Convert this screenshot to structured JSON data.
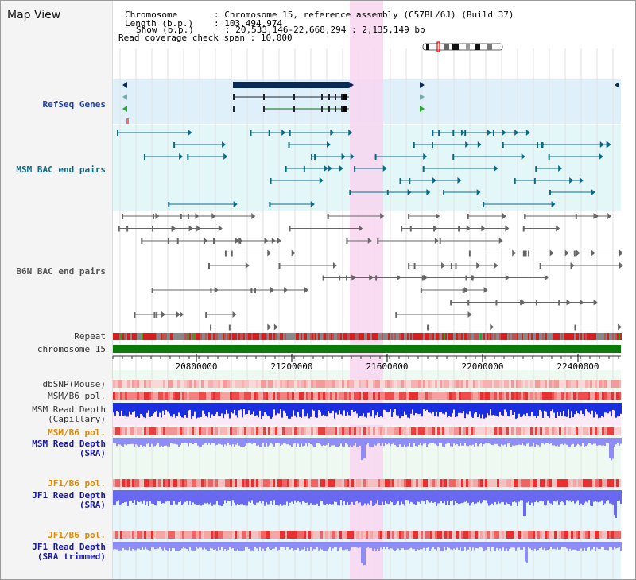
{
  "header": {
    "title": "Map View",
    "chromosome_key": "Chromosome",
    "chromosome_value": "Chromosome 15, reference assembly (C57BL/6J) (Build 37)",
    "length_key": "Length (b.p.)",
    "length_value": "103,494,974",
    "show_key": "Show (b.p.)",
    "show_value": "20,533,146-22,668,294 : 2,135,149 bp",
    "span_key": "Read coverage check span",
    "span_value": "10,000"
  },
  "tracks": {
    "refseq": "RefSeq Genes",
    "msm_bac": "MSM BAC end pairs",
    "b6n_bac": "B6N BAC end pairs",
    "repeat": "Repeat",
    "chromosome": "chromosome 15",
    "dbsnp": "dbSNP(Mouse)",
    "msm_b6_pol": "MSM/B6 pol.",
    "msm_depth_cap_1": "MSM Read Depth",
    "msm_depth_cap_2": "(Capillary)",
    "msm_b6_pol_2": "MSM/B6 pol.",
    "msm_depth_sra_1": "MSM Read Depth",
    "msm_depth_sra_2": "(SRA)",
    "jf1_b6_pol": "JF1/B6 pol.",
    "jf1_depth_sra_1": "JF1 Read Depth",
    "jf1_depth_sra_2": "(SRA)",
    "jf1_b6_pol_2": "JF1/B6 pol.",
    "jf1_depth_trim_1": "JF1 Read Depth",
    "jf1_depth_trim_2": "(SRA trimmed)"
  },
  "axis_ticks": [
    "20800000",
    "21200000",
    "21600000",
    "22000000",
    "22400000"
  ],
  "colors": {
    "highlight": "#f8d6f0",
    "gene_bg": "#dff0fa",
    "bac_bg": "#e4f7f8",
    "msm_feature": "#0d6a86",
    "b6n_feature": "#666666",
    "chromosome_band": "#0b7a0b",
    "depth_blue": "#1a2ee0",
    "depth_light": "#8d8df5",
    "pol_red": "#f04a4a"
  }
}
